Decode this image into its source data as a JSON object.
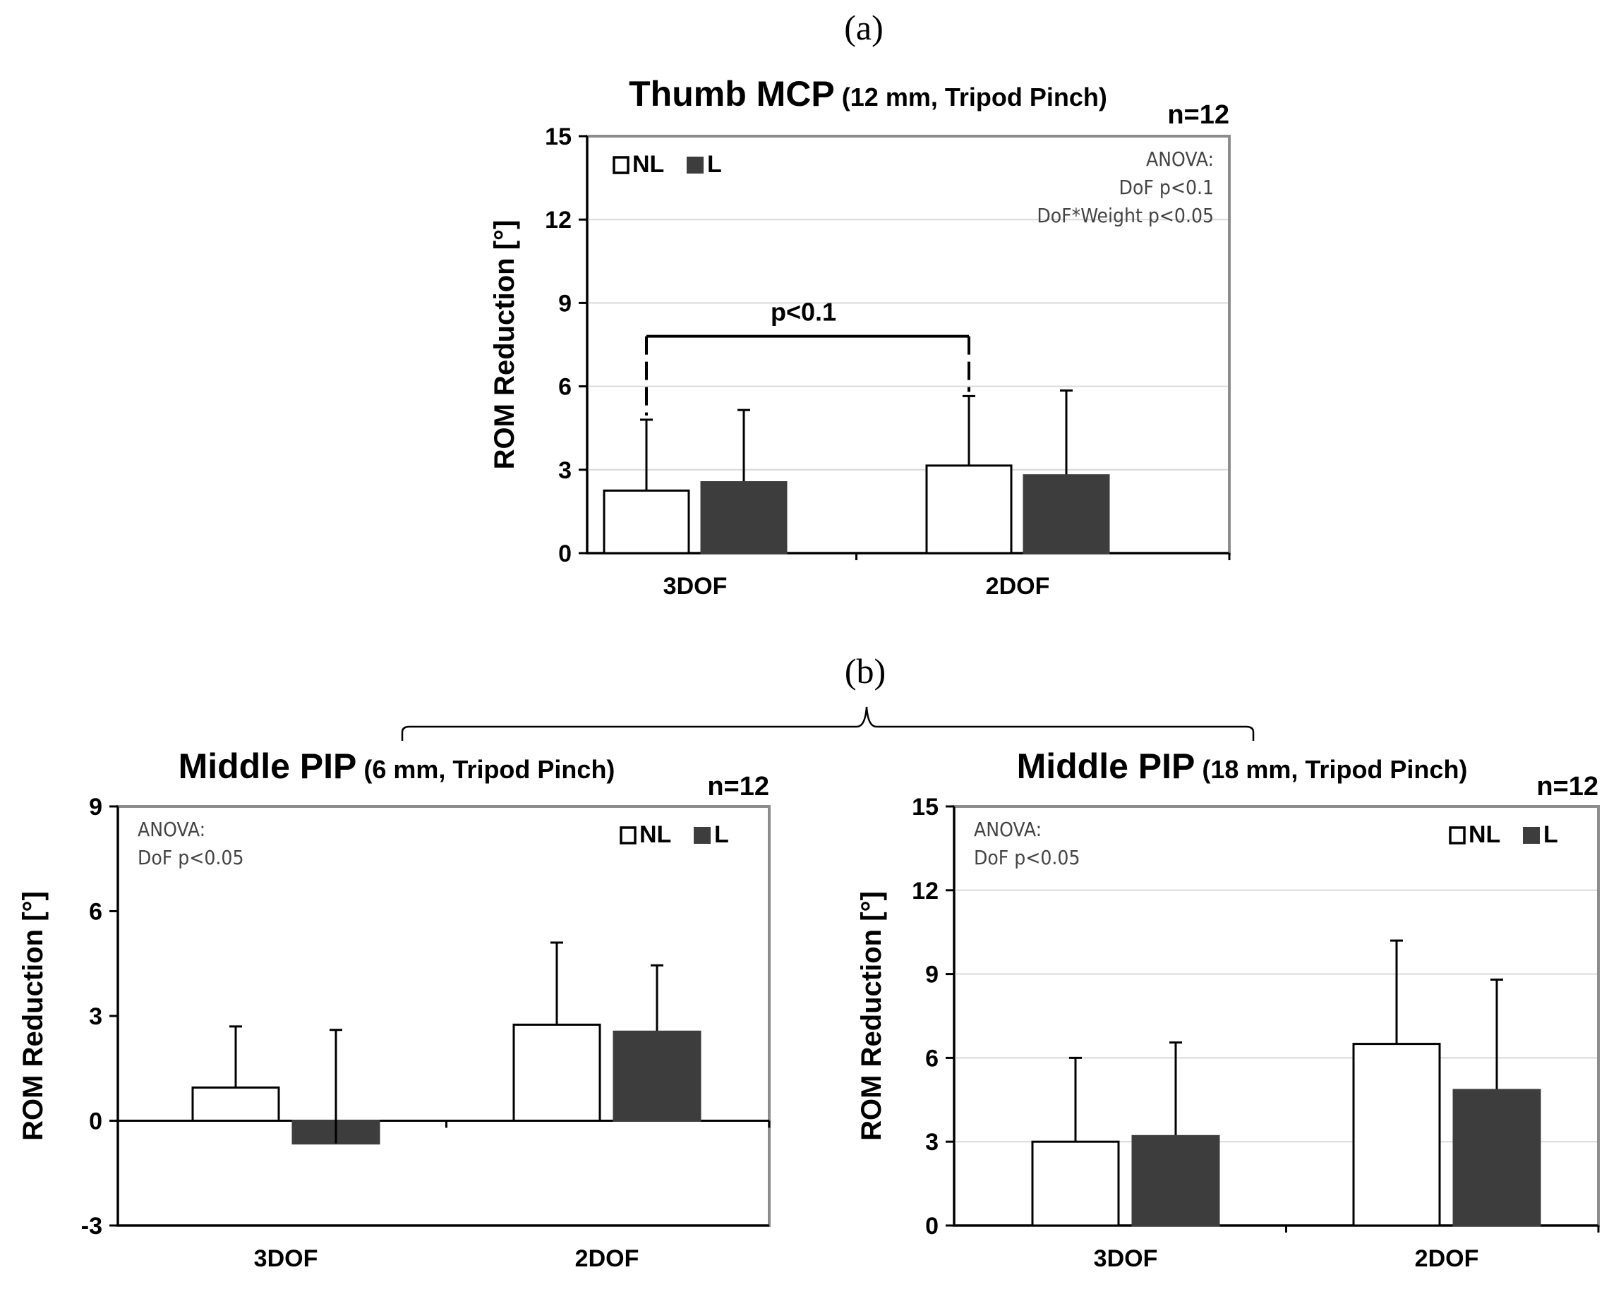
{
  "panel_labels": {
    "a": "(a)",
    "b": "(b)"
  },
  "legend": {
    "nl": "NL",
    "l": "L"
  },
  "colors": {
    "nl_fill": "#ffffff",
    "l_fill": "#3d3d3d",
    "frame": "#8c8c8c",
    "grid": "#d9d9d9",
    "axis": "#000000"
  },
  "chart_data": [
    {
      "type": "bar",
      "title": "Thumb MCP",
      "subtitle": "(12 mm, Tripod Pinch)",
      "n_label": "n=12",
      "ylabel": "ROM Reduction [°]",
      "xlabel": "",
      "categories": [
        "3DOF",
        "2DOF"
      ],
      "series": [
        {
          "name": "NL",
          "values": [
            2.25,
            3.15
          ],
          "errors": [
            2.55,
            2.5
          ]
        },
        {
          "name": "L",
          "values": [
            2.55,
            2.8
          ],
          "errors": [
            2.6,
            3.05
          ]
        }
      ],
      "ylim": [
        0,
        15
      ],
      "yticks": [
        0,
        3,
        6,
        9,
        12,
        15
      ],
      "yticklabels": [
        "0",
        "3",
        "6",
        "9",
        "12",
        "15"
      ],
      "grid": true,
      "legend_position": "top-left",
      "annotation_position": "top-right",
      "annotation": [
        "ANOVA:",
        "DoF p<0.1",
        "DoF*Weight p<0.05"
      ],
      "significance": {
        "label": "p<0.1",
        "y": 7.8,
        "from": 0,
        "to": 1
      }
    },
    {
      "type": "bar",
      "title": "Middle PIP",
      "subtitle": "(6 mm, Tripod Pinch)",
      "n_label": "n=12",
      "ylabel": "ROM Reduction [°]",
      "xlabel": "",
      "categories": [
        "3DOF",
        "2DOF"
      ],
      "series": [
        {
          "name": "NL",
          "values": [
            0.95,
            2.75
          ],
          "errors": [
            1.75,
            2.35
          ]
        },
        {
          "name": "L",
          "values": [
            -0.65,
            2.55
          ],
          "errors": [
            3.25,
            1.9
          ]
        }
      ],
      "ylim": [
        -3,
        9
      ],
      "yticks": [
        -3,
        0,
        3,
        6,
        9
      ],
      "yticklabels": [
        "-3",
        "0",
        "3",
        "6",
        "9"
      ],
      "grid": false,
      "legend_position": "top-right",
      "annotation_position": "top-left",
      "annotation": [
        "ANOVA:",
        "DoF p<0.05"
      ]
    },
    {
      "type": "bar",
      "title": "Middle PIP",
      "subtitle": "(18 mm, Tripod Pinch)",
      "n_label": "n=12",
      "ylabel": "ROM Reduction [°]",
      "xlabel": "",
      "categories": [
        "3DOF",
        "2DOF"
      ],
      "series": [
        {
          "name": "NL",
          "values": [
            3.0,
            6.5
          ],
          "errors": [
            3.0,
            3.7
          ]
        },
        {
          "name": "L",
          "values": [
            3.2,
            4.85
          ],
          "errors": [
            3.35,
            3.95
          ]
        }
      ],
      "ylim": [
        0,
        15
      ],
      "yticks": [
        0,
        3,
        6,
        9,
        12,
        15
      ],
      "yticklabels": [
        "0",
        "3",
        "6",
        "9",
        "12",
        "15"
      ],
      "grid": true,
      "legend_position": "top-right",
      "annotation_position": "top-left",
      "annotation": [
        "ANOVA:",
        "DoF p<0.05"
      ]
    }
  ]
}
